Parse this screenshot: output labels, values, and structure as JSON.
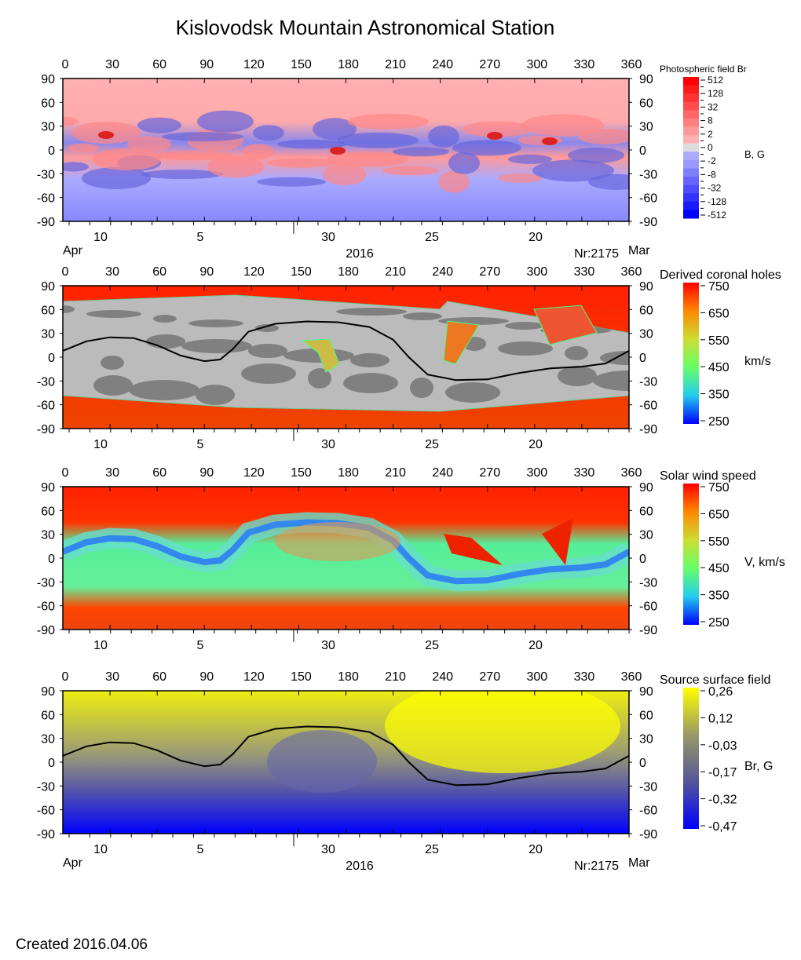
{
  "title": "Kislovodsk Mountain Astronomical Station",
  "created": "Created  2016.04.06",
  "chart_data": [
    {
      "type": "heatmap",
      "title": "Photospheric field Br",
      "unit_label": "B, G",
      "colorbar": {
        "ticks": [
          "512",
          "128",
          "32",
          "8",
          "2",
          "0",
          "-2",
          "-8",
          "-32",
          "-128",
          "-512"
        ],
        "colors": [
          "#ff0000",
          "#ffaaaa",
          "#dddddd",
          "#aaaaff",
          "#0000ff"
        ]
      },
      "x_top_ticks": [
        0,
        30,
        60,
        90,
        120,
        150,
        180,
        210,
        240,
        270,
        300,
        330,
        360
      ],
      "y_ticks": [
        90,
        60,
        30,
        0,
        -30,
        -60,
        -90
      ],
      "date_ticks": [
        "10",
        "5",
        "30",
        "25",
        "20"
      ],
      "month_left": "Apr",
      "month_right": "Mar",
      "year": "2016",
      "rotation": "Nr:2175"
    },
    {
      "type": "heatmap",
      "title": "Derived coronal holes",
      "unit_label": "km/s",
      "colorbar": {
        "ticks": [
          "750",
          "650",
          "550",
          "450",
          "350",
          "250"
        ],
        "colors": [
          "#ff0000",
          "#ff8800",
          "#ccdd33",
          "#66ff66",
          "#22ccee",
          "#0000ff"
        ]
      },
      "x_top_ticks": [
        0,
        30,
        60,
        90,
        120,
        150,
        180,
        210,
        240,
        270,
        300,
        330,
        360
      ],
      "y_ticks": [
        90,
        60,
        30,
        0,
        -30,
        -60,
        -90
      ],
      "date_ticks": [
        "10",
        "5",
        "30",
        "25",
        "20"
      ],
      "neutral_line": true
    },
    {
      "type": "heatmap",
      "title": "Solar wind speed",
      "unit_label": "V, km/s",
      "colorbar": {
        "ticks": [
          "750",
          "650",
          "550",
          "450",
          "350",
          "250"
        ],
        "colors": [
          "#ff0000",
          "#ff8800",
          "#ccdd33",
          "#66ff66",
          "#22ccee",
          "#0000ff"
        ]
      },
      "x_top_ticks": [
        0,
        30,
        60,
        90,
        120,
        150,
        180,
        210,
        240,
        270,
        300,
        330,
        360
      ],
      "y_ticks": [
        90,
        60,
        30,
        0,
        -30,
        -60,
        -90
      ],
      "date_ticks": [
        "10",
        "5",
        "30",
        "25",
        "20"
      ]
    },
    {
      "type": "heatmap",
      "title": "Source surface field",
      "unit_label": "Br, G",
      "colorbar": {
        "ticks": [
          "0,26",
          "0,12",
          "-0,03",
          "-0,17",
          "-0,32",
          "-0,47"
        ],
        "colors": [
          "#ffff00",
          "#999966",
          "#555599",
          "#0000ff"
        ]
      },
      "x_top_ticks": [
        0,
        30,
        60,
        90,
        120,
        150,
        180,
        210,
        240,
        270,
        300,
        330,
        360
      ],
      "y_ticks": [
        90,
        60,
        30,
        0,
        -30,
        -60,
        -90
      ],
      "date_ticks": [
        "10",
        "5",
        "30",
        "25",
        "20"
      ],
      "month_left": "Apr",
      "month_right": "Mar",
      "year": "2016",
      "rotation": "Nr:2175",
      "neutral_line": true
    }
  ],
  "neutral_line_points": [
    [
      0,
      8
    ],
    [
      15,
      20
    ],
    [
      30,
      25
    ],
    [
      45,
      24
    ],
    [
      60,
      15
    ],
    [
      75,
      2
    ],
    [
      90,
      -5
    ],
    [
      100,
      -3
    ],
    [
      108,
      10
    ],
    [
      118,
      32
    ],
    [
      135,
      42
    ],
    [
      155,
      45
    ],
    [
      175,
      44
    ],
    [
      195,
      38
    ],
    [
      210,
      22
    ],
    [
      220,
      0
    ],
    [
      232,
      -22
    ],
    [
      250,
      -29
    ],
    [
      270,
      -28
    ],
    [
      290,
      -20
    ],
    [
      310,
      -14
    ],
    [
      330,
      -12
    ],
    [
      345,
      -8
    ],
    [
      360,
      8
    ]
  ]
}
